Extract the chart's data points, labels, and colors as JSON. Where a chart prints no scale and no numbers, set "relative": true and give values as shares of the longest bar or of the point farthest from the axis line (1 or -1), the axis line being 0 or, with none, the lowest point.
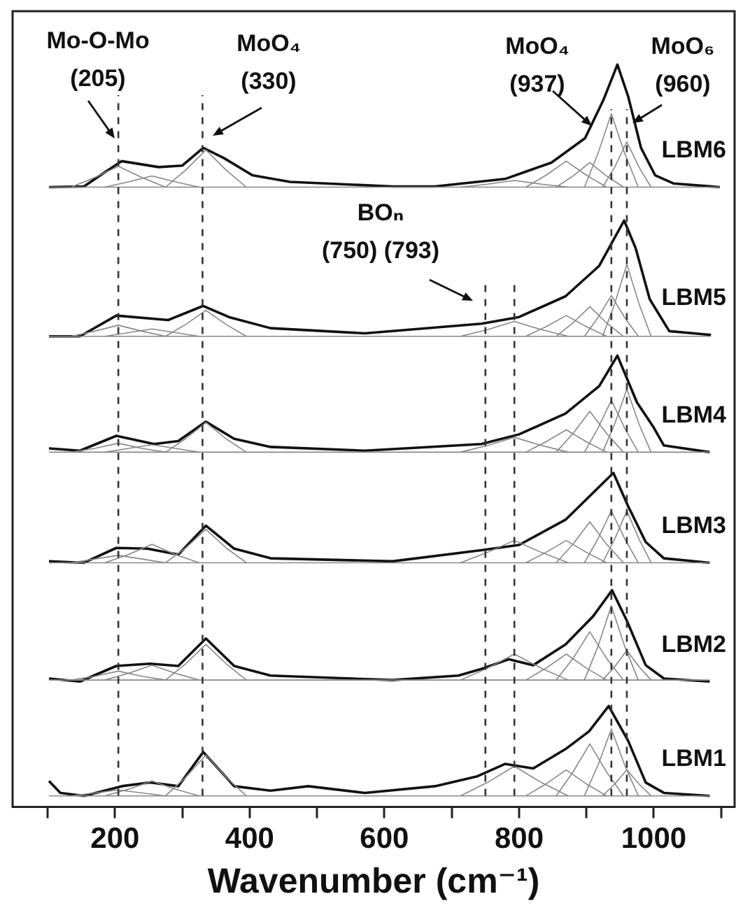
{
  "chart_data": {
    "type": "line",
    "relative": true,
    "xlabel": "Wavenumber (cm⁻¹)",
    "xlim": [
      48,
      1120
    ],
    "xticks": [
      {
        "value": 100,
        "label": null
      },
      200,
      {
        "value": 300,
        "label": null
      },
      400,
      {
        "value": 500,
        "label": null
      },
      600,
      {
        "value": 700,
        "label": null
      },
      800,
      {
        "value": 900,
        "label": null
      },
      1000,
      {
        "value": 1100,
        "label": null
      }
    ],
    "ref_lines": [
      {
        "axis": "x",
        "value": 205,
        "line_style": "dashed",
        "color": "#333333"
      },
      {
        "axis": "x",
        "value": 330,
        "line_style": "dashed",
        "color": "#333333"
      },
      {
        "axis": "x",
        "value": 750,
        "line_style": "dashed",
        "color": "#333333"
      },
      {
        "axis": "x",
        "value": 793,
        "line_style": "dashed",
        "color": "#333333"
      },
      {
        "axis": "x",
        "value": 937,
        "line_style": "dashed",
        "color": "#333333"
      },
      {
        "axis": "x",
        "value": 960,
        "line_style": "dashed",
        "color": "#333333"
      }
    ],
    "annotations": [
      "Mo-O-Mo\n(205)",
      "MoO₄\n(330)",
      "BOₙ\n(750) (793)",
      "MoO₄\n(937)",
      "MoO₆\n(960)"
    ],
    "series": [
      {
        "name": "LBM6",
        "color": "#111111",
        "x": [
          102,
          154,
          175,
          210,
          265,
          300,
          331,
          362,
          404,
          460,
          612,
          675,
          779,
          848,
          898,
          925,
          946,
          962,
          981,
          1002,
          1029,
          1098
        ],
        "values": [
          0.835,
          0.836,
          0.849,
          0.87,
          0.862,
          0.864,
          0.888,
          0.874,
          0.851,
          0.842,
          0.836,
          0.836,
          0.846,
          0.868,
          0.901,
          0.952,
          1,
          0.957,
          0.888,
          0.851,
          0.84,
          0.835
        ]
      },
      {
        "name": "LBM5",
        "color": "#111111",
        "x": [
          102,
          148,
          202,
          279,
          331,
          369,
          431,
          571,
          744,
          800,
          869,
          919,
          956,
          973,
          994,
          1023,
          1085
        ],
        "values": [
          0.634,
          0.634,
          0.662,
          0.656,
          0.675,
          0.66,
          0.645,
          0.638,
          0.651,
          0.66,
          0.688,
          0.729,
          0.79,
          0.753,
          0.684,
          0.641,
          0.636
        ]
      },
      {
        "name": "LBM4",
        "color": "#111111",
        "x": [
          102,
          148,
          202,
          258,
          294,
          335,
          377,
          431,
          571,
          744,
          800,
          869,
          919,
          946,
          975,
          1000,
          1015,
          1083
        ],
        "values": [
          0.483,
          0.48,
          0.5,
          0.489,
          0.493,
          0.519,
          0.496,
          0.485,
          0.48,
          0.489,
          0.502,
          0.53,
          0.567,
          0.608,
          0.545,
          0.511,
          0.487,
          0.478
        ]
      },
      {
        "name": "LBM3",
        "color": "#111111",
        "x": [
          102,
          154,
          202,
          248,
          294,
          335,
          377,
          431,
          612,
          744,
          800,
          869,
          904,
          940,
          962,
          988,
          1015,
          1083
        ],
        "values": [
          0.331,
          0.329,
          0.349,
          0.348,
          0.34,
          0.379,
          0.348,
          0.335,
          0.331,
          0.346,
          0.353,
          0.387,
          0.418,
          0.45,
          0.405,
          0.357,
          0.335,
          0.329
        ]
      },
      {
        "name": "LBM2",
        "color": "#111111",
        "x": [
          102,
          148,
          202,
          252,
          294,
          335,
          377,
          431,
          612,
          710,
          744,
          785,
          821,
          869,
          910,
          938,
          960,
          988,
          1015,
          1083
        ],
        "values": [
          0.173,
          0.169,
          0.19,
          0.193,
          0.19,
          0.227,
          0.19,
          0.177,
          0.171,
          0.177,
          0.186,
          0.199,
          0.191,
          0.219,
          0.257,
          0.292,
          0.251,
          0.191,
          0.173,
          0.169
        ]
      },
      {
        "name": "LBM1",
        "color": "#111111",
        "x": [
          102,
          119,
          154,
          210,
          252,
          294,
          331,
          377,
          431,
          487,
          571,
          675,
          737,
          779,
          821,
          869,
          904,
          933,
          962,
          988,
          1015,
          1083
        ],
        "values": [
          0.035,
          0.019,
          0.015,
          0.028,
          0.033,
          0.028,
          0.074,
          0.028,
          0.022,
          0.028,
          0.019,
          0.028,
          0.041,
          0.058,
          0.052,
          0.078,
          0.102,
          0.136,
          0.089,
          0.033,
          0.019,
          0.015
        ]
      },
      {
        "color": "#888888",
        "x": [
          102,
          1098
        ],
        "values": [
          0.835,
          0.835
        ]
      },
      {
        "color": "#888888",
        "x": [
          135,
          170,
          205,
          240,
          275
        ],
        "values": [
          0.835,
          0.848,
          0.863,
          0.848,
          0.835
        ]
      },
      {
        "color": "#888888",
        "x": [
          185,
          220,
          255,
          290,
          325
        ],
        "values": [
          0.835,
          0.842,
          0.85,
          0.842,
          0.835
        ]
      },
      {
        "color": "#888888",
        "x": [
          275,
          305,
          335,
          365,
          395
        ],
        "values": [
          0.835,
          0.858,
          0.885,
          0.858,
          0.835
        ]
      },
      {
        "color": "#888888",
        "x": [
          713,
          753,
          793,
          833,
          873
        ],
        "values": [
          0.835,
          0.839,
          0.844,
          0.839,
          0.835
        ]
      },
      {
        "color": "#888888",
        "x": [
          810,
          840,
          870,
          900,
          930
        ],
        "values": [
          0.835,
          0.851,
          0.87,
          0.851,
          0.835
        ]
      },
      {
        "color": "#888888",
        "x": [
          855,
          880,
          905,
          930,
          955
        ],
        "values": [
          0.835,
          0.85,
          0.868,
          0.85,
          0.835
        ]
      },
      {
        "color": "#888888",
        "x": [
          897,
          917,
          937,
          957,
          977
        ],
        "values": [
          0.835,
          0.88,
          0.934,
          0.88,
          0.835
        ]
      },
      {
        "color": "#888888",
        "x": [
          924,
          942,
          960,
          978,
          996
        ],
        "values": [
          0.835,
          0.862,
          0.896,
          0.862,
          0.835
        ]
      },
      {
        "color": "#888888",
        "x": [
          102,
          1085
        ],
        "values": [
          0.634,
          0.634
        ]
      },
      {
        "color": "#888888",
        "x": [
          135,
          170,
          205,
          240,
          275
        ],
        "values": [
          0.634,
          0.641,
          0.649,
          0.641,
          0.634
        ]
      },
      {
        "color": "#888888",
        "x": [
          185,
          220,
          255,
          290,
          325
        ],
        "values": [
          0.634,
          0.639,
          0.644,
          0.639,
          0.634
        ]
      },
      {
        "color": "#888888",
        "x": [
          275,
          305,
          335,
          365,
          395
        ],
        "values": [
          0.634,
          0.65,
          0.669,
          0.65,
          0.634
        ]
      },
      {
        "color": "#888888",
        "x": [
          713,
          753,
          793,
          833,
          873
        ],
        "values": [
          0.634,
          0.643,
          0.654,
          0.643,
          0.634
        ]
      },
      {
        "color": "#888888",
        "x": [
          810,
          840,
          870,
          900,
          930
        ],
        "values": [
          0.634,
          0.647,
          0.662,
          0.647,
          0.634
        ]
      },
      {
        "color": "#888888",
        "x": [
          855,
          880,
          905,
          930,
          955
        ],
        "values": [
          0.634,
          0.652,
          0.674,
          0.652,
          0.634
        ]
      },
      {
        "color": "#888888",
        "x": [
          897,
          917,
          937,
          957,
          977
        ],
        "values": [
          0.634,
          0.659,
          0.689,
          0.659,
          0.634
        ]
      },
      {
        "color": "#888888",
        "x": [
          924,
          942,
          960,
          978,
          996
        ],
        "values": [
          0.634,
          0.678,
          0.731,
          0.678,
          0.634
        ]
      },
      {
        "color": "#888888",
        "x": [
          102,
          1083
        ],
        "values": [
          0.478,
          0.478
        ]
      },
      {
        "color": "#888888",
        "x": [
          135,
          170,
          205,
          240,
          275
        ],
        "values": [
          0.478,
          0.483,
          0.49,
          0.483,
          0.478
        ]
      },
      {
        "color": "#888888",
        "x": [
          185,
          220,
          255,
          290,
          325
        ],
        "values": [
          0.478,
          0.483,
          0.488,
          0.483,
          0.478
        ]
      },
      {
        "color": "#888888",
        "x": [
          275,
          305,
          335,
          365,
          395
        ],
        "values": [
          0.478,
          0.496,
          0.518,
          0.496,
          0.478
        ]
      },
      {
        "color": "#888888",
        "x": [
          713,
          753,
          793,
          833,
          873
        ],
        "values": [
          0.478,
          0.487,
          0.498,
          0.487,
          0.478
        ]
      },
      {
        "color": "#888888",
        "x": [
          810,
          840,
          870,
          900,
          930
        ],
        "values": [
          0.478,
          0.492,
          0.508,
          0.492,
          0.478
        ]
      },
      {
        "color": "#888888",
        "x": [
          855,
          880,
          905,
          930,
          955
        ],
        "values": [
          0.478,
          0.503,
          0.533,
          0.503,
          0.478
        ]
      },
      {
        "color": "#888888",
        "x": [
          897,
          917,
          937,
          957,
          977
        ],
        "values": [
          0.478,
          0.51,
          0.548,
          0.51,
          0.478
        ]
      },
      {
        "color": "#888888",
        "x": [
          924,
          942,
          960,
          978,
          996
        ],
        "values": [
          0.478,
          0.516,
          0.563,
          0.516,
          0.478
        ]
      },
      {
        "color": "#888888",
        "x": [
          102,
          1083
        ],
        "values": [
          0.329,
          0.329
        ]
      },
      {
        "color": "#888888",
        "x": [
          135,
          170,
          205,
          240,
          275
        ],
        "values": [
          0.329,
          0.334,
          0.339,
          0.334,
          0.329
        ]
      },
      {
        "color": "#888888",
        "x": [
          185,
          220,
          255,
          290,
          325
        ],
        "values": [
          0.329,
          0.34,
          0.354,
          0.34,
          0.329
        ]
      },
      {
        "color": "#888888",
        "x": [
          275,
          305,
          335,
          365,
          395
        ],
        "values": [
          0.329,
          0.349,
          0.374,
          0.349,
          0.329
        ]
      },
      {
        "color": "#888888",
        "x": [
          713,
          753,
          793,
          833,
          873
        ],
        "values": [
          0.329,
          0.343,
          0.359,
          0.343,
          0.329
        ]
      },
      {
        "color": "#888888",
        "x": [
          810,
          840,
          870,
          900,
          930
        ],
        "values": [
          0.329,
          0.343,
          0.359,
          0.343,
          0.329
        ]
      },
      {
        "color": "#888888",
        "x": [
          855,
          880,
          905,
          930,
          955
        ],
        "values": [
          0.329,
          0.354,
          0.384,
          0.354,
          0.329
        ]
      },
      {
        "color": "#888888",
        "x": [
          897,
          917,
          937,
          957,
          977
        ],
        "values": [
          0.329,
          0.361,
          0.399,
          0.361,
          0.329
        ]
      },
      {
        "color": "#888888",
        "x": [
          924,
          942,
          960,
          978,
          996
        ],
        "values": [
          0.329,
          0.361,
          0.399,
          0.361,
          0.329
        ]
      },
      {
        "color": "#888888",
        "x": [
          102,
          1083
        ],
        "values": [
          0.171,
          0.171
        ]
      },
      {
        "color": "#888888",
        "x": [
          135,
          170,
          205,
          240,
          275
        ],
        "values": [
          0.171,
          0.176,
          0.183,
          0.176,
          0.171
        ]
      },
      {
        "color": "#888888",
        "x": [
          185,
          220,
          255,
          290,
          325
        ],
        "values": [
          0.171,
          0.18,
          0.191,
          0.18,
          0.171
        ]
      },
      {
        "color": "#888888",
        "x": [
          275,
          305,
          335,
          365,
          395
        ],
        "values": [
          0.171,
          0.193,
          0.219,
          0.193,
          0.171
        ]
      },
      {
        "color": "#888888",
        "x": [
          713,
          753,
          793,
          833,
          873
        ],
        "values": [
          0.171,
          0.187,
          0.206,
          0.187,
          0.171
        ]
      },
      {
        "color": "#888888",
        "x": [
          810,
          840,
          870,
          900,
          930
        ],
        "values": [
          0.171,
          0.187,
          0.206,
          0.187,
          0.171
        ]
      },
      {
        "color": "#888888",
        "x": [
          855,
          880,
          905,
          930,
          955
        ],
        "values": [
          0.171,
          0.2,
          0.236,
          0.2,
          0.171
        ]
      },
      {
        "color": "#888888",
        "x": [
          897,
          917,
          937,
          957,
          977
        ],
        "values": [
          0.171,
          0.216,
          0.271,
          0.216,
          0.171
        ]
      },
      {
        "color": "#888888",
        "x": [
          924,
          942,
          960,
          978,
          996
        ],
        "values": [
          0.171,
          0.189,
          0.211,
          0.189,
          0.171
        ]
      },
      {
        "color": "#888888",
        "x": [
          102,
          1083
        ],
        "values": [
          0.015,
          0.015
        ]
      },
      {
        "color": "#888888",
        "x": [
          135,
          170,
          205,
          240,
          275
        ],
        "values": [
          0.015,
          0.019,
          0.023,
          0.019,
          0.015
        ]
      },
      {
        "color": "#888888",
        "x": [
          185,
          220,
          255,
          290,
          325
        ],
        "values": [
          0.015,
          0.024,
          0.035,
          0.024,
          0.015
        ]
      },
      {
        "color": "#888888",
        "x": [
          275,
          305,
          335,
          365,
          395
        ],
        "values": [
          0.015,
          0.04,
          0.07,
          0.04,
          0.015
        ]
      },
      {
        "color": "#888888",
        "x": [
          713,
          753,
          793,
          833,
          873
        ],
        "values": [
          0.015,
          0.033,
          0.055,
          0.033,
          0.015
        ]
      },
      {
        "color": "#888888",
        "x": [
          810,
          840,
          870,
          900,
          930
        ],
        "values": [
          0.015,
          0.031,
          0.05,
          0.031,
          0.015
        ]
      },
      {
        "color": "#888888",
        "x": [
          855,
          880,
          905,
          930,
          955
        ],
        "values": [
          0.015,
          0.047,
          0.085,
          0.047,
          0.015
        ]
      },
      {
        "color": "#888888",
        "x": [
          897,
          917,
          937,
          957,
          977
        ],
        "values": [
          0.015,
          0.056,
          0.105,
          0.056,
          0.015
        ]
      },
      {
        "color": "#888888",
        "x": [
          924,
          942,
          960,
          978,
          996
        ],
        "values": [
          0.015,
          0.031,
          0.05,
          0.031,
          0.015
        ]
      }
    ]
  }
}
